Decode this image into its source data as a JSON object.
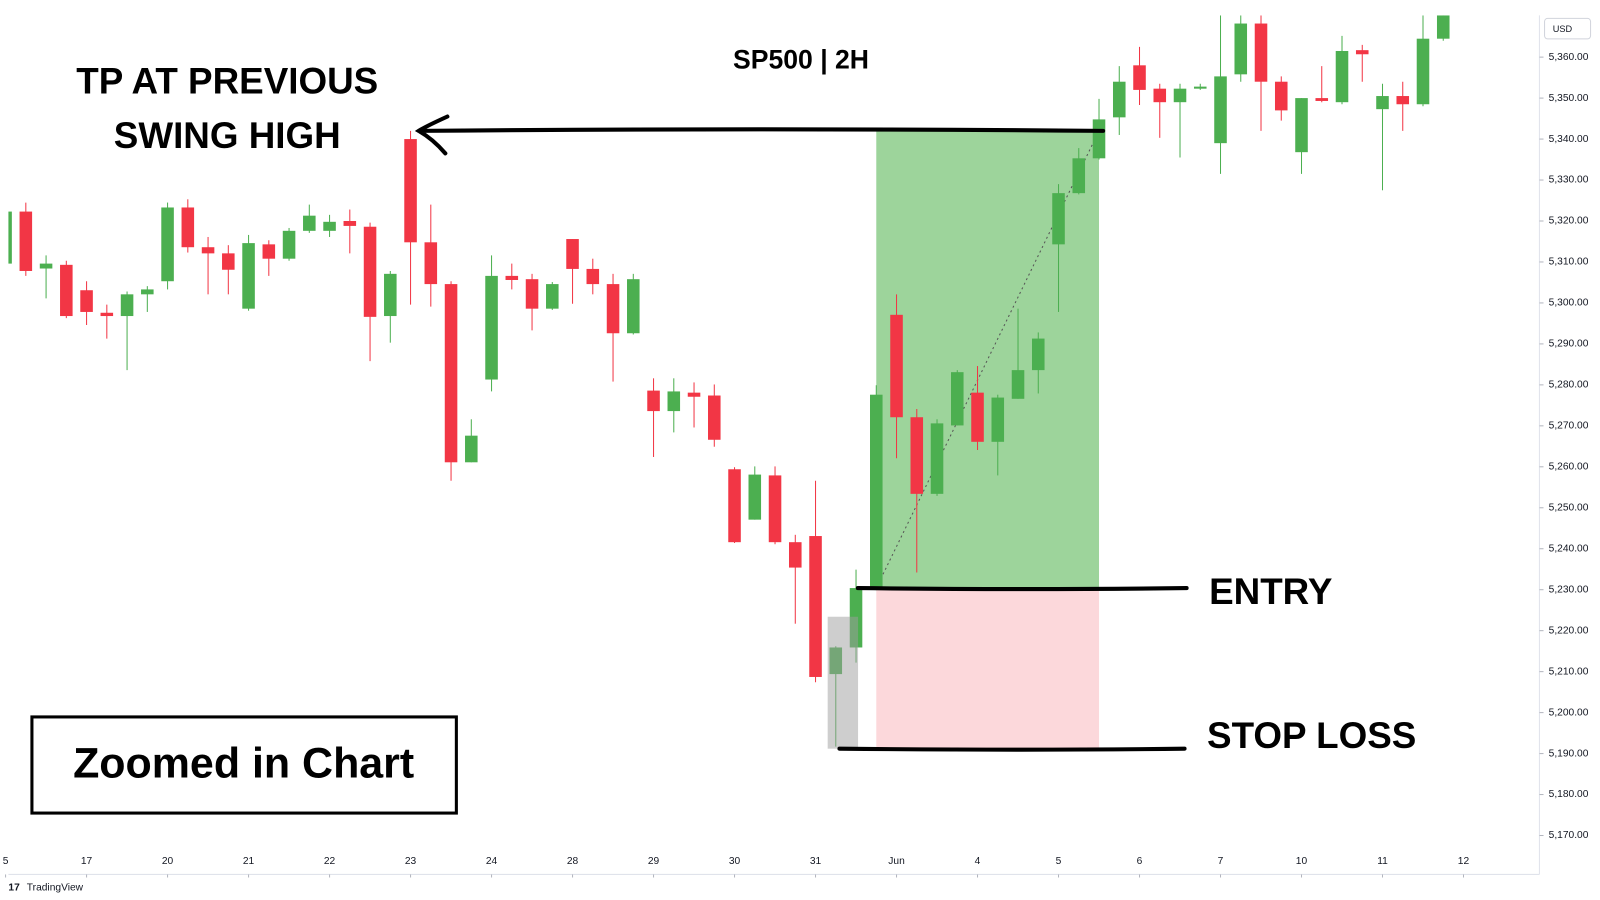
{
  "chart_data": {
    "type": "candlestick",
    "title": "SP500 | 2H",
    "currency": "USD",
    "brand": "TradingView",
    "x": [
      -1,
      0,
      1,
      2,
      3,
      4,
      5,
      6,
      7,
      8,
      9,
      10,
      11,
      12,
      13,
      14,
      15,
      16,
      17,
      18,
      19,
      20,
      21,
      22,
      23,
      24,
      25,
      26,
      27,
      28,
      29,
      30,
      31,
      32,
      33,
      34,
      35,
      36,
      37,
      38,
      39,
      40,
      41,
      42,
      43,
      44,
      45,
      46,
      47,
      48,
      49,
      50,
      51,
      52,
      53,
      54,
      55,
      56,
      57,
      58,
      59,
      60,
      61,
      62,
      63,
      64,
      65,
      66,
      67,
      68,
      69,
      70
    ],
    "open": [
      5309.6,
      5322.3,
      5308.4,
      5309.3,
      5303.1,
      5297.6,
      5296.8,
      5302.1,
      5305.3,
      5323.3,
      5313.6,
      5312.1,
      5298.6,
      5314.3,
      5310.8,
      5317.6,
      5317.6,
      5320.0,
      5318.6,
      5296.8,
      5340.0,
      5314.8,
      5304.6,
      5261.1,
      5281.3,
      5306.6,
      5305.8,
      5298.6,
      5315.6,
      5308.3,
      5304.6,
      5292.6,
      5278.6,
      5273.6,
      5278.1,
      5277.4,
      5259.4,
      5247.1,
      5257.9,
      5241.6,
      5243.1,
      5209.4,
      5215.9,
      5230.4,
      5297.1,
      5272.1,
      5253.4,
      5270.1,
      5278.1,
      5266.1,
      5276.6,
      5283.6,
      5314.3,
      5326.8,
      5335.3,
      5345.3,
      5358.0,
      5352.3,
      5349.0,
      5352.3,
      5339.0,
      5355.8,
      5368.2,
      5354.0,
      5336.8,
      5350.0,
      5349.0,
      5361.7,
      5347.3,
      5350.5,
      5348.5,
      5364.5
    ],
    "high": [
      5324.0,
      5324.5,
      5311.6,
      5310.3,
      5305.3,
      5299.6,
      5302.8,
      5304.1,
      5324.5,
      5325.3,
      5316.1,
      5314.1,
      5316.6,
      5315.3,
      5318.3,
      5324.0,
      5321.5,
      5322.8,
      5319.6,
      5307.8,
      5342.0,
      5324.0,
      5305.3,
      5271.6,
      5311.6,
      5309.6,
      5307.1,
      5305.1,
      5315.6,
      5310.8,
      5307.1,
      5307.1,
      5281.6,
      5281.6,
      5280.6,
      5280.1,
      5259.9,
      5260.1,
      5260.1,
      5243.4,
      5256.6,
      5216.2,
      5234.9,
      5279.9,
      5302.1,
      5274.1,
      5271.6,
      5283.6,
      5284.6,
      5277.6,
      5298.6,
      5292.8,
      5329.0,
      5337.8,
      5349.8,
      5357.8,
      5362.5,
      5353.5,
      5353.5,
      5353.5,
      5370.2,
      5370.2,
      5370.2,
      5355.3,
      5350.0,
      5357.8,
      5365.2,
      5363.0,
      5353.5,
      5354.0,
      5370.2,
      5370.2
    ],
    "low": [
      5307.8,
      5306.6,
      5301.1,
      5296.3,
      5294.6,
      5291.3,
      5283.6,
      5297.8,
      5303.3,
      5312.3,
      5302.1,
      5302.1,
      5298.1,
      5306.6,
      5310.3,
      5317.1,
      5316.1,
      5312.1,
      5285.8,
      5290.3,
      5299.6,
      5299.1,
      5256.6,
      5261.1,
      5278.4,
      5303.3,
      5293.3,
      5298.3,
      5299.8,
      5302.1,
      5280.8,
      5292.3,
      5262.4,
      5268.4,
      5269.6,
      5264.9,
      5241.4,
      5247.1,
      5241.1,
      5221.7,
      5207.4,
      5191.7,
      5212.2,
      5229.9,
      5262.1,
      5234.2,
      5252.9,
      5270.1,
      5264.1,
      5257.9,
      5276.6,
      5277.9,
      5297.8,
      5326.5,
      5335.0,
      5341.0,
      5348.3,
      5340.3,
      5335.5,
      5352.0,
      5331.5,
      5354.0,
      5342.0,
      5344.5,
      5331.5,
      5349.0,
      5348.5,
      5354.0,
      5327.5,
      5342.0,
      5348.0,
      5364.0
    ],
    "close": [
      5322.3,
      5307.8,
      5309.6,
      5296.8,
      5297.8,
      5296.8,
      5302.1,
      5303.3,
      5323.3,
      5313.6,
      5312.1,
      5308.1,
      5314.6,
      5310.8,
      5317.6,
      5321.3,
      5319.8,
      5318.8,
      5296.6,
      5307.1,
      5314.8,
      5304.6,
      5261.1,
      5267.6,
      5306.6,
      5305.6,
      5298.6,
      5304.6,
      5308.3,
      5304.6,
      5292.6,
      5305.8,
      5273.6,
      5278.4,
      5277.1,
      5266.6,
      5241.6,
      5258.1,
      5241.6,
      5235.4,
      5208.7,
      5215.9,
      5230.4,
      5277.6,
      5272.1,
      5253.4,
      5270.6,
      5283.1,
      5266.1,
      5276.9,
      5283.6,
      5291.3,
      5326.8,
      5335.3,
      5344.8,
      5354.0,
      5352.0,
      5349.0,
      5352.3,
      5352.8,
      5355.3,
      5368.2,
      5354.0,
      5347.0,
      5350.0,
      5349.3,
      5361.5,
      5360.7,
      5350.5,
      5348.5,
      5364.5,
      5370.2
    ],
    "up_color": "#4caf50",
    "down_color": "#f23645",
    "xlim": [
      -0.86,
      74.75
    ],
    "ylim": [
      5160.5,
      5370.2
    ],
    "xticks": [
      {
        "value": -1,
        "label": "5"
      },
      {
        "value": 3,
        "label": "17"
      },
      {
        "value": 7,
        "label": "20"
      },
      {
        "value": 11,
        "label": "21"
      },
      {
        "value": 15,
        "label": "22"
      },
      {
        "value": 19,
        "label": "23"
      },
      {
        "value": 23,
        "label": "24"
      },
      {
        "value": 27,
        "label": "28"
      },
      {
        "value": 31,
        "label": "29"
      },
      {
        "value": 35,
        "label": "30"
      },
      {
        "value": 39,
        "label": "31"
      },
      {
        "value": 43,
        "label": "Jun"
      },
      {
        "value": 47,
        "label": "4"
      },
      {
        "value": 51,
        "label": "5"
      },
      {
        "value": 55,
        "label": "6"
      },
      {
        "value": 59,
        "label": "7"
      },
      {
        "value": 63,
        "label": "10"
      },
      {
        "value": 67,
        "label": "11"
      },
      {
        "value": 71,
        "label": "12"
      }
    ],
    "yticks": [
      {
        "value": 5170,
        "label": "5,170.00"
      },
      {
        "value": 5180,
        "label": "5,180.00"
      },
      {
        "value": 5190,
        "label": "5,190.00"
      },
      {
        "value": 5200,
        "label": "5,200.00"
      },
      {
        "value": 5210,
        "label": "5,210.00"
      },
      {
        "value": 5220,
        "label": "5,220.00"
      },
      {
        "value": 5230,
        "label": "5,230.00"
      },
      {
        "value": 5240,
        "label": "5,240.00"
      },
      {
        "value": 5250,
        "label": "5,250.00"
      },
      {
        "value": 5260,
        "label": "5,260.00"
      },
      {
        "value": 5270,
        "label": "5,270.00"
      },
      {
        "value": 5280,
        "label": "5,280.00"
      },
      {
        "value": 5290,
        "label": "5,290.00"
      },
      {
        "value": 5300,
        "label": "5,300.00"
      },
      {
        "value": 5310,
        "label": "5,310.00"
      },
      {
        "value": 5320,
        "label": "5,320.00"
      },
      {
        "value": 5330,
        "label": "5,330.00"
      },
      {
        "value": 5340,
        "label": "5,340.00"
      },
      {
        "value": 5350,
        "label": "5,350.00"
      },
      {
        "value": 5360,
        "label": "5,360.00"
      }
    ],
    "grid": false,
    "position": {
      "target": 5342.0,
      "entry": 5230.4,
      "stop": 5191.2,
      "x": [
        42,
        53
      ],
      "target_color": "#9dd49b",
      "stop_color": "#fcd8db"
    },
    "highlight": {
      "x": [
        39.6,
        41.1
      ],
      "y": [
        5191.2,
        5223.4
      ],
      "color": "#9e9e9e"
    },
    "annotations": {
      "tp": [
        "TP AT PREVIOUS",
        "SWING HIGH"
      ],
      "entry": "ENTRY",
      "stop": "STOP LOSS",
      "box": "Zoomed in Chart"
    }
  }
}
